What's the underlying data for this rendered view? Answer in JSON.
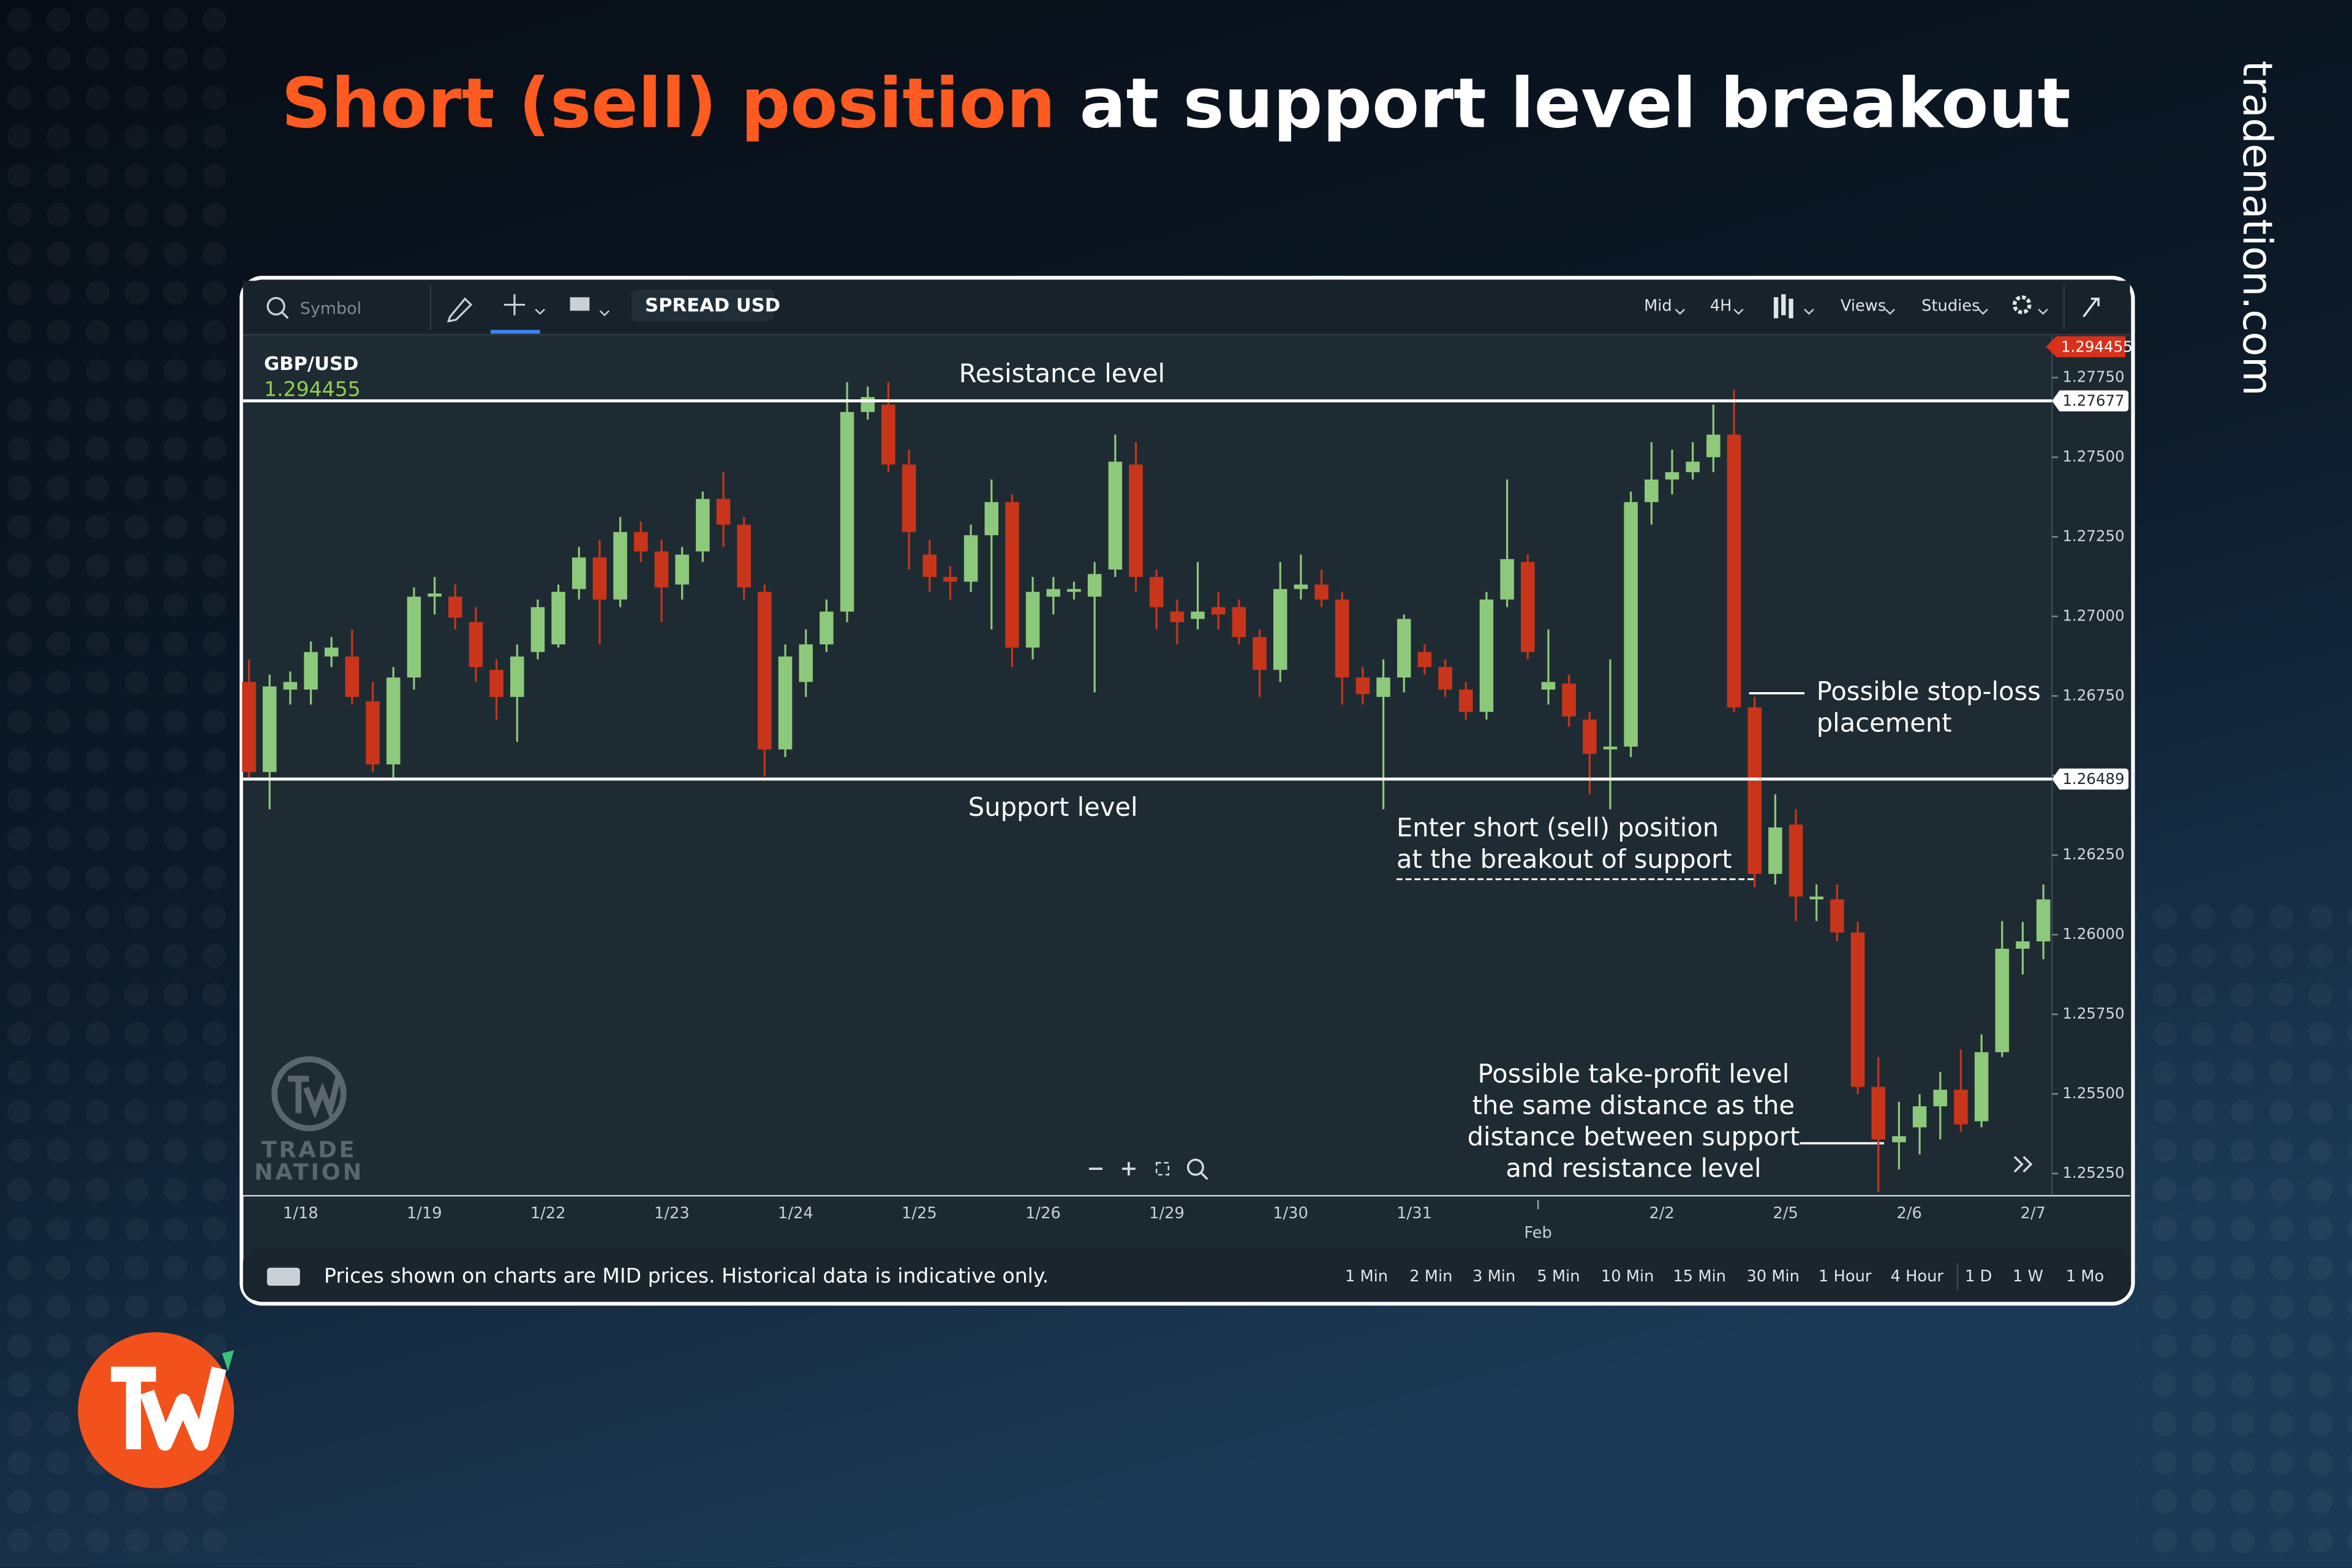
{
  "header": {
    "title_highlight": "Short (sell) position",
    "title_rest": "at support level breakout",
    "site": "tradenation.com"
  },
  "toolbar": {
    "symbol_placeholder": "Symbol",
    "spread": "SPREAD USD",
    "price_type": "Mid",
    "interval": "4H",
    "views": "Views",
    "studies": "Studies"
  },
  "watermark": [
    "TRADE",
    "NATION"
  ],
  "footer": {
    "note": "Prices shown on charts are MID prices. Historical data is indicative only.",
    "timeframes": [
      "1 Min",
      "2 Min",
      "3 Min",
      "5 Min",
      "10 Min",
      "15 Min",
      "30 Min",
      "1 Hour",
      "4 Hour",
      "1 D",
      "1 W",
      "1 Mo"
    ]
  },
  "chart_data": {
    "type": "candlestick",
    "instrument": "GBP/USD",
    "last_price": 1.294455,
    "up_color": "#8cc97a",
    "down_color": "#c9351a",
    "ylim": [
      1.2518,
      1.2788
    ],
    "yticks": [
      {
        "value": 1.2525,
        "label": "1.25250"
      },
      {
        "value": 1.255,
        "label": "1.25500"
      },
      {
        "value": 1.2575,
        "label": "1.25750"
      },
      {
        "value": 1.26,
        "label": "1.26000"
      },
      {
        "value": 1.2625,
        "label": "1.26250"
      },
      {
        "value": 1.265,
        "label": "1.26500"
      },
      {
        "value": 1.2675,
        "label": "1.26750"
      },
      {
        "value": 1.27,
        "label": "1.27000"
      },
      {
        "value": 1.2725,
        "label": "1.27250"
      },
      {
        "value": 1.275,
        "label": "1.27500"
      },
      {
        "value": 1.2775,
        "label": "1.27750"
      }
    ],
    "levels": [
      {
        "name": "Resistance level",
        "value": 1.27677
      },
      {
        "name": "Support level",
        "value": 1.26489
      }
    ],
    "annotations": {
      "stop_loss": [
        "Possible stop-loss",
        "placement"
      ],
      "entry": [
        "Enter short (sell) position",
        "at the breakout of support"
      ],
      "take_profit": [
        "Possible take-profit level",
        "the same distance as the",
        "distance between support",
        "and resistance level"
      ]
    },
    "categories": [
      null,
      null,
      null,
      "1/18",
      null,
      null,
      null,
      null,
      null,
      "1/19",
      null,
      null,
      null,
      null,
      null,
      "1/22",
      null,
      null,
      null,
      null,
      null,
      "1/23",
      null,
      null,
      null,
      null,
      null,
      "1/24",
      null,
      null,
      null,
      null,
      null,
      "1/25",
      null,
      null,
      null,
      null,
      null,
      "1/26",
      null,
      null,
      null,
      null,
      null,
      "1/29",
      null,
      null,
      null,
      null,
      null,
      "1/30",
      null,
      null,
      null,
      null,
      null,
      "1/31",
      null,
      null,
      null,
      null,
      null,
      "Feb",
      null,
      null,
      null,
      null,
      null,
      "2/2",
      null,
      null,
      null,
      null,
      null,
      "2/5",
      null,
      null,
      null,
      null,
      null,
      "2/6",
      null,
      null,
      null,
      null,
      null,
      "2/7"
    ],
    "ohlc": [
      [
        1.26794,
        1.26865,
        1.26488,
        1.26511
      ],
      [
        1.26511,
        1.26817,
        1.26394,
        1.2678
      ],
      [
        1.2677,
        1.26827,
        1.26723,
        1.26794
      ],
      [
        1.2677,
        1.26921,
        1.26723,
        1.26888
      ],
      [
        1.26874,
        1.26935,
        1.26841,
        1.26902
      ],
      [
        1.26874,
        1.26959,
        1.26723,
        1.26747
      ],
      [
        1.26733,
        1.26794,
        1.26511,
        1.26535
      ],
      [
        1.26535,
        1.26841,
        1.26488,
        1.26808
      ],
      [
        1.26808,
        1.27091,
        1.2677,
        1.27062
      ],
      [
        1.27062,
        1.27124,
        1.27006,
        1.27072
      ],
      [
        1.27062,
        1.271,
        1.26959,
        1.26996
      ],
      [
        1.26982,
        1.27029,
        1.26794,
        1.26841
      ],
      [
        1.26832,
        1.26865,
        1.26676,
        1.26747
      ],
      [
        1.26747,
        1.26912,
        1.26606,
        1.26874
      ],
      [
        1.26888,
        1.27053,
        1.26865,
        1.27029
      ],
      [
        1.26912,
        1.271,
        1.26902,
        1.27077
      ],
      [
        1.27086,
        1.27218,
        1.27053,
        1.27185
      ],
      [
        1.27185,
        1.27241,
        1.26912,
        1.27053
      ],
      [
        1.27053,
        1.27312,
        1.27029,
        1.27265
      ],
      [
        1.27265,
        1.27298,
        1.27171,
        1.27204
      ],
      [
        1.27204,
        1.27241,
        1.26982,
        1.27091
      ],
      [
        1.271,
        1.27218,
        1.27053,
        1.27194
      ],
      [
        1.27204,
        1.27392,
        1.27171,
        1.27369
      ],
      [
        1.27369,
        1.27453,
        1.27218,
        1.27288
      ],
      [
        1.27288,
        1.27312,
        1.27053,
        1.27091
      ],
      [
        1.27077,
        1.271,
        1.26497,
        1.26582
      ],
      [
        1.26582,
        1.26912,
        1.26558,
        1.26874
      ],
      [
        1.26794,
        1.26959,
        1.26747,
        1.26912
      ],
      [
        1.26912,
        1.27053,
        1.26888,
        1.27015
      ],
      [
        1.27015,
        1.27736,
        1.26982,
        1.27642
      ],
      [
        1.27642,
        1.27722,
        1.27618,
        1.27689
      ],
      [
        1.27665,
        1.27736,
        1.27453,
        1.27477
      ],
      [
        1.27477,
        1.27524,
        1.27147,
        1.27265
      ],
      [
        1.27194,
        1.27241,
        1.27077,
        1.27124
      ],
      [
        1.27124,
        1.27157,
        1.27053,
        1.27109
      ],
      [
        1.27109,
        1.27288,
        1.27077,
        1.27255
      ],
      [
        1.27255,
        1.2743,
        1.26959,
        1.27359
      ],
      [
        1.27359,
        1.27383,
        1.26841,
        1.26902
      ],
      [
        1.26902,
        1.27124,
        1.26865,
        1.27077
      ],
      [
        1.27062,
        1.27124,
        1.27006,
        1.27086
      ],
      [
        1.27077,
        1.27109,
        1.27053,
        1.27086
      ],
      [
        1.27062,
        1.27171,
        1.26761,
        1.27133
      ],
      [
        1.27147,
        1.27571,
        1.27124,
        1.27486
      ],
      [
        1.27477,
        1.27547,
        1.27077,
        1.27124
      ],
      [
        1.27124,
        1.27147,
        1.26959,
        1.27029
      ],
      [
        1.27015,
        1.27053,
        1.26912,
        1.26982
      ],
      [
        1.26992,
        1.27171,
        1.26959,
        1.27015
      ],
      [
        1.27029,
        1.27077,
        1.26959,
        1.27006
      ],
      [
        1.27029,
        1.27053,
        1.26912,
        1.26935
      ],
      [
        1.26935,
        1.26959,
        1.26747,
        1.26832
      ],
      [
        1.26832,
        1.27171,
        1.26794,
        1.27086
      ],
      [
        1.27086,
        1.27194,
        1.27053,
        1.271
      ],
      [
        1.271,
        1.27147,
        1.27029,
        1.27053
      ],
      [
        1.27053,
        1.27077,
        1.26723,
        1.26808
      ],
      [
        1.26808,
        1.26841,
        1.26723,
        1.26756
      ],
      [
        1.26747,
        1.26865,
        1.26394,
        1.26808
      ],
      [
        1.26808,
        1.27006,
        1.26761,
        1.26992
      ],
      [
        1.26888,
        1.26912,
        1.26817,
        1.26841
      ],
      [
        1.26841,
        1.26865,
        1.26747,
        1.2677
      ],
      [
        1.2677,
        1.26794,
        1.26676,
        1.267
      ],
      [
        1.267,
        1.27077,
        1.26676,
        1.27053
      ],
      [
        1.27053,
        1.2743,
        1.27029,
        1.2718
      ],
      [
        1.27171,
        1.27194,
        1.26865,
        1.26888
      ],
      [
        1.2677,
        1.26959,
        1.26723,
        1.26794
      ],
      [
        1.26789,
        1.26817,
        1.26653,
        1.26686
      ],
      [
        1.26676,
        1.267,
        1.26441,
        1.26568
      ],
      [
        1.26582,
        1.26865,
        1.26394,
        1.26591
      ],
      [
        1.26591,
        1.27392,
        1.26558,
        1.27359
      ],
      [
        1.27359,
        1.27547,
        1.27288,
        1.2743
      ],
      [
        1.2743,
        1.27524,
        1.27383,
        1.27453
      ],
      [
        1.27453,
        1.27547,
        1.2743,
        1.27486
      ],
      [
        1.275,
        1.27665,
        1.27453,
        1.27571
      ],
      [
        1.27571,
        1.27712,
        1.267,
        1.26714
      ],
      [
        1.26714,
        1.26747,
        1.26149,
        1.26191
      ],
      [
        1.26191,
        1.26441,
        1.26158,
        1.26337
      ],
      [
        1.26346,
        1.26394,
        1.26043,
        1.2612
      ],
      [
        1.26111,
        1.26158,
        1.26043,
        1.2612
      ],
      [
        1.26111,
        1.26158,
        1.25979,
        1.26007
      ],
      [
        1.26007,
        1.2604,
        1.25499,
        1.25522
      ],
      [
        1.25522,
        1.25616,
        1.25192,
        1.25357
      ],
      [
        1.25348,
        1.25475,
        1.25263,
        1.25367
      ],
      [
        1.25395,
        1.25499,
        1.2531,
        1.25461
      ],
      [
        1.25461,
        1.25569,
        1.25357,
        1.25513
      ],
      [
        1.25513,
        1.2564,
        1.25381,
        1.25404
      ],
      [
        1.25414,
        1.25687,
        1.25395,
        1.25631
      ],
      [
        1.25631,
        1.26043,
        1.25616,
        1.25956
      ],
      [
        1.25956,
        1.2604,
        1.25875,
        1.25979
      ],
      [
        1.25979,
        1.26158,
        1.25923,
        1.26111
      ]
    ]
  }
}
